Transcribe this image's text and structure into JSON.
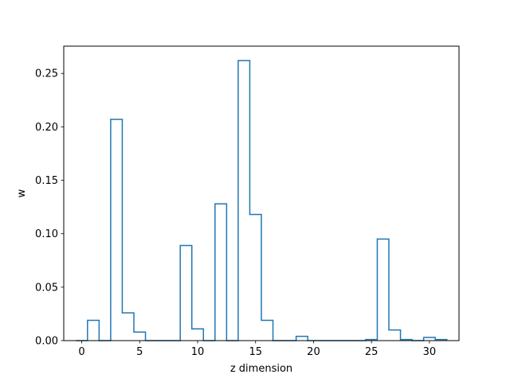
{
  "chart_data": {
    "type": "step",
    "title": "",
    "xlabel": "z dimension",
    "ylabel": "w",
    "xlim": [
      -1.55,
      32.55
    ],
    "ylim": [
      0,
      0.2755
    ],
    "xticks": [
      0,
      5,
      10,
      15,
      20,
      25,
      30
    ],
    "xtick_labels": [
      "0",
      "5",
      "10",
      "15",
      "20",
      "25",
      "30"
    ],
    "yticks": [
      0.0,
      0.05,
      0.1,
      0.15,
      0.2,
      0.25
    ],
    "ytick_labels": [
      "0.00",
      "0.05",
      "0.10",
      "0.15",
      "0.20",
      "0.25"
    ],
    "grid": false,
    "color": "#1f77b4",
    "x": [
      0,
      1,
      2,
      3,
      4,
      5,
      6,
      7,
      8,
      9,
      10,
      11,
      12,
      13,
      14,
      15,
      16,
      17,
      18,
      19,
      20,
      21,
      22,
      23,
      24,
      25,
      26,
      27,
      28,
      29,
      30,
      31
    ],
    "values": [
      0.0,
      0.019,
      0.0,
      0.207,
      0.026,
      0.008,
      0.0,
      0.0,
      0.0,
      0.089,
      0.011,
      0.0,
      0.128,
      0.0,
      0.262,
      0.118,
      0.019,
      0.0,
      0.0,
      0.004,
      0.0,
      0.0,
      0.0,
      0.0,
      0.0,
      0.001,
      0.095,
      0.01,
      0.001,
      0.0,
      0.003,
      0.001
    ]
  }
}
